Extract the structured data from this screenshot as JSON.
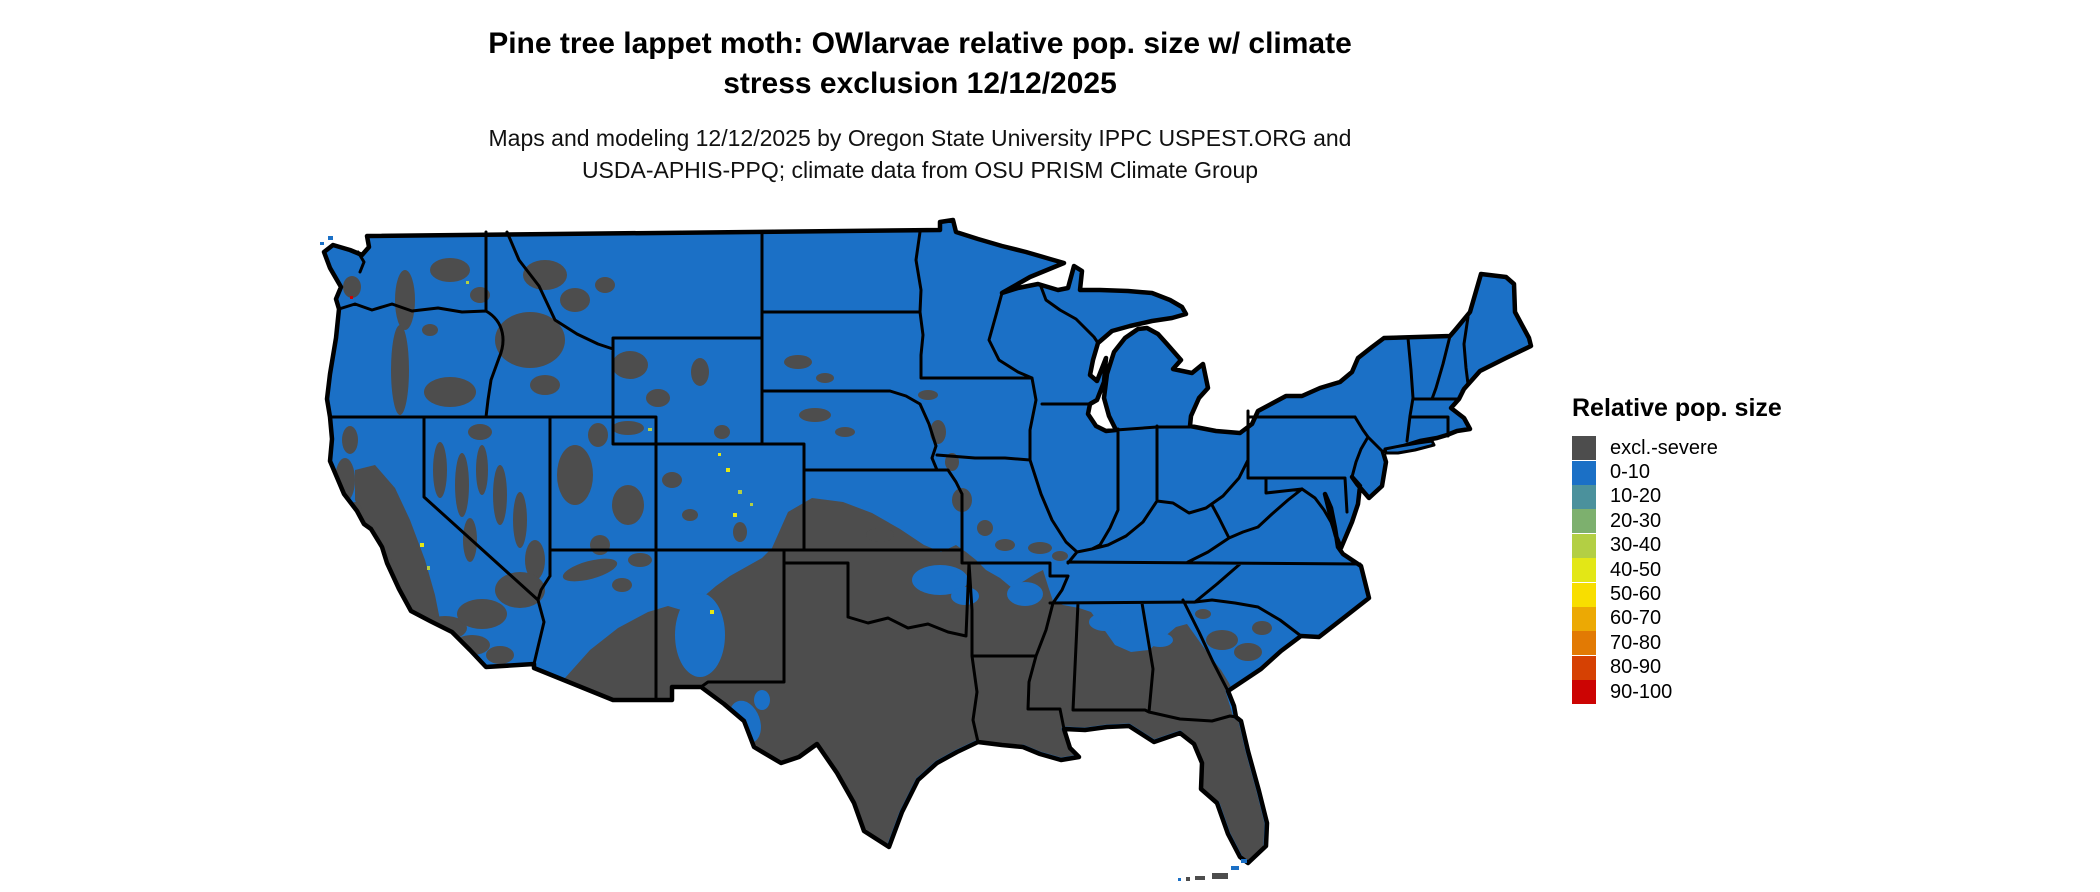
{
  "title": {
    "line1": "Pine tree lappet moth: OWlarvae relative pop. size w/ climate",
    "line2": "stress exclusion 12/12/2025"
  },
  "subtitle": {
    "line1": "Maps and modeling 12/12/2025 by Oregon State University IPPC USPEST.ORG and",
    "line2": "USDA-APHIS-PPQ; climate data from OSU PRISM Climate Group"
  },
  "legend": {
    "title": "Relative pop. size",
    "items": [
      {
        "label": "excl.-severe",
        "color": "#4D4D4D"
      },
      {
        "label": "0-10",
        "color": "#1B70C6"
      },
      {
        "label": "10-20",
        "color": "#4B919C"
      },
      {
        "label": "20-30",
        "color": "#7DB06E"
      },
      {
        "label": "30-40",
        "color": "#B3CF44"
      },
      {
        "label": "40-50",
        "color": "#E3E716"
      },
      {
        "label": "50-60",
        "color": "#F8DE00"
      },
      {
        "label": "60-70",
        "color": "#ECA904"
      },
      {
        "label": "70-80",
        "color": "#E27A04"
      },
      {
        "label": "80-90",
        "color": "#D64103"
      },
      {
        "label": "90-100",
        "color": "#CC0403"
      }
    ]
  },
  "colors": {
    "background": "#FFFFFF",
    "blue": "#1B70C6",
    "gray": "#4D4D4D",
    "border": "#000000",
    "speck_yellow": "#E3E716",
    "speck_green": "#B3CF44",
    "speck_red": "#CC0403"
  },
  "map": {
    "region": "Contiguous United States",
    "base_category": "0-10",
    "excluded_category": "excl.-severe"
  }
}
